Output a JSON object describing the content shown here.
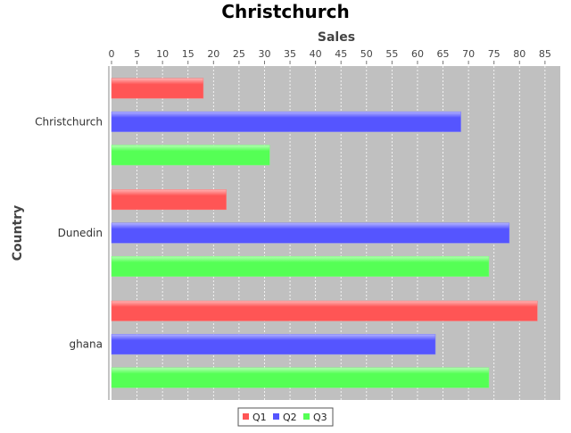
{
  "chart_data": {
    "type": "bar",
    "orientation": "horizontal",
    "title": "Christchurch",
    "xlabel": "Sales",
    "ylabel": "Country",
    "xlim": [
      0,
      88
    ],
    "x_ticks": [
      0,
      5,
      10,
      15,
      20,
      25,
      30,
      35,
      40,
      45,
      50,
      55,
      60,
      65,
      70,
      75,
      80,
      85
    ],
    "categories": [
      "Christchurch",
      "Dunedin",
      "ghana"
    ],
    "series": [
      {
        "name": "Q1",
        "color": "#ff5555",
        "values": [
          18,
          22.5,
          83.5
        ]
      },
      {
        "name": "Q2",
        "color": "#5555ff",
        "values": [
          68.5,
          78,
          63.5
        ]
      },
      {
        "name": "Q3",
        "color": "#55ff55",
        "values": [
          31,
          74,
          74
        ]
      }
    ],
    "plot_background": "#c0c0c0",
    "grid": true,
    "legend_position": "bottom"
  }
}
